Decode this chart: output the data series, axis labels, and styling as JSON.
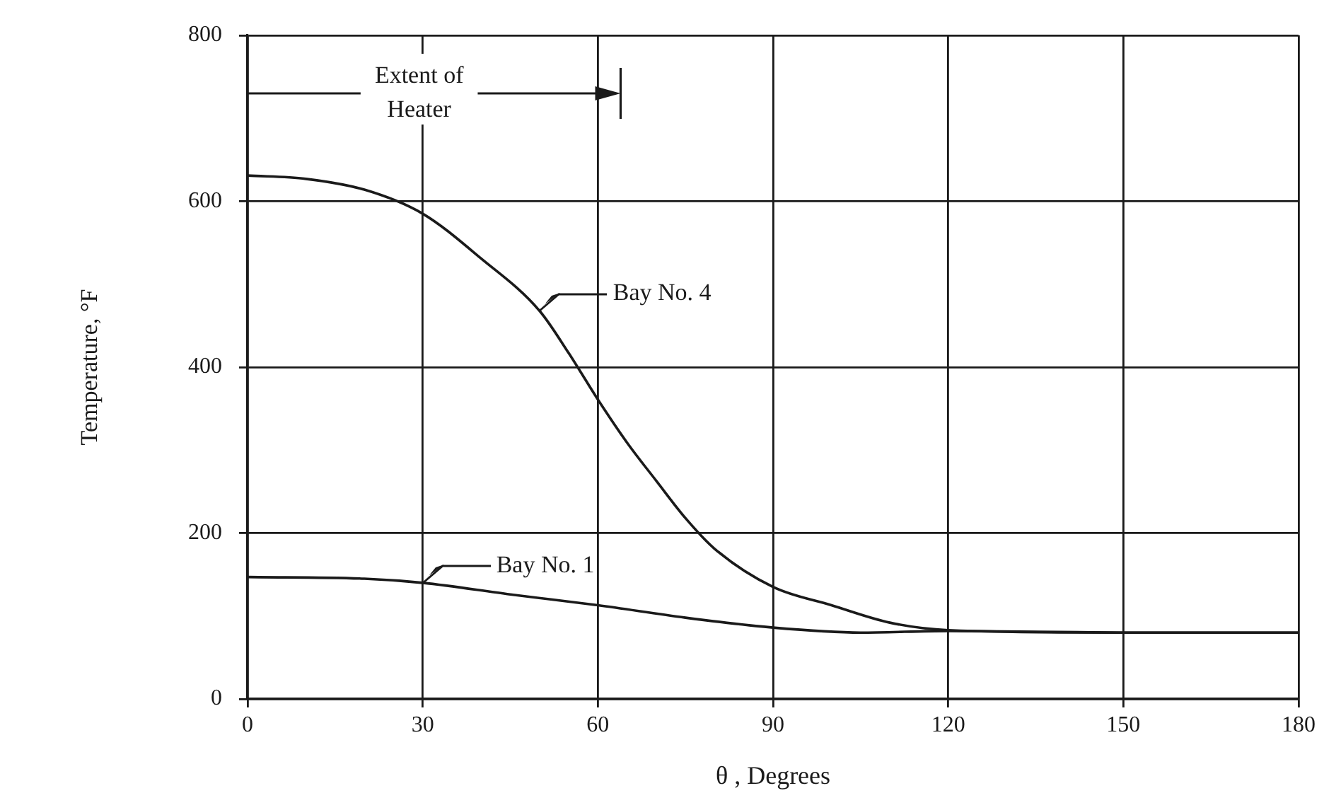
{
  "chart_data": {
    "type": "line",
    "xlabel": "θ , Degrees",
    "ylabel": "Temperature, °F",
    "xlim": [
      0,
      180
    ],
    "xticks": [
      0,
      30,
      60,
      90,
      120,
      150,
      180
    ],
    "ylim": [
      0,
      800
    ],
    "yticks": [
      0,
      200,
      400,
      600,
      800
    ],
    "grid": true,
    "legend": "left",
    "marker": "none",
    "line_style": "solid",
    "series": [
      {
        "name": "Bay No. 4",
        "color": "#1a1a1a",
        "x": [
          0,
          10,
          20,
          30,
          40,
          50,
          55,
          60,
          65,
          70,
          75,
          80,
          90,
          100,
          110,
          120,
          150,
          180
        ],
        "values": [
          631,
          627,
          614,
          585,
          531,
          468,
          417,
          361,
          309,
          263,
          218,
          181,
          135,
          113,
          92,
          83,
          80,
          80
        ]
      },
      {
        "name": "Bay No. 1",
        "color": "#1a1a1a",
        "x": [
          0,
          20,
          30,
          45,
          60,
          75,
          90,
          105,
          120,
          150,
          180
        ],
        "values": [
          147,
          145,
          140,
          126,
          113,
          98,
          86,
          80,
          82,
          80,
          80
        ]
      }
    ],
    "annotations": [
      "Extent of Heater"
    ]
  }
}
